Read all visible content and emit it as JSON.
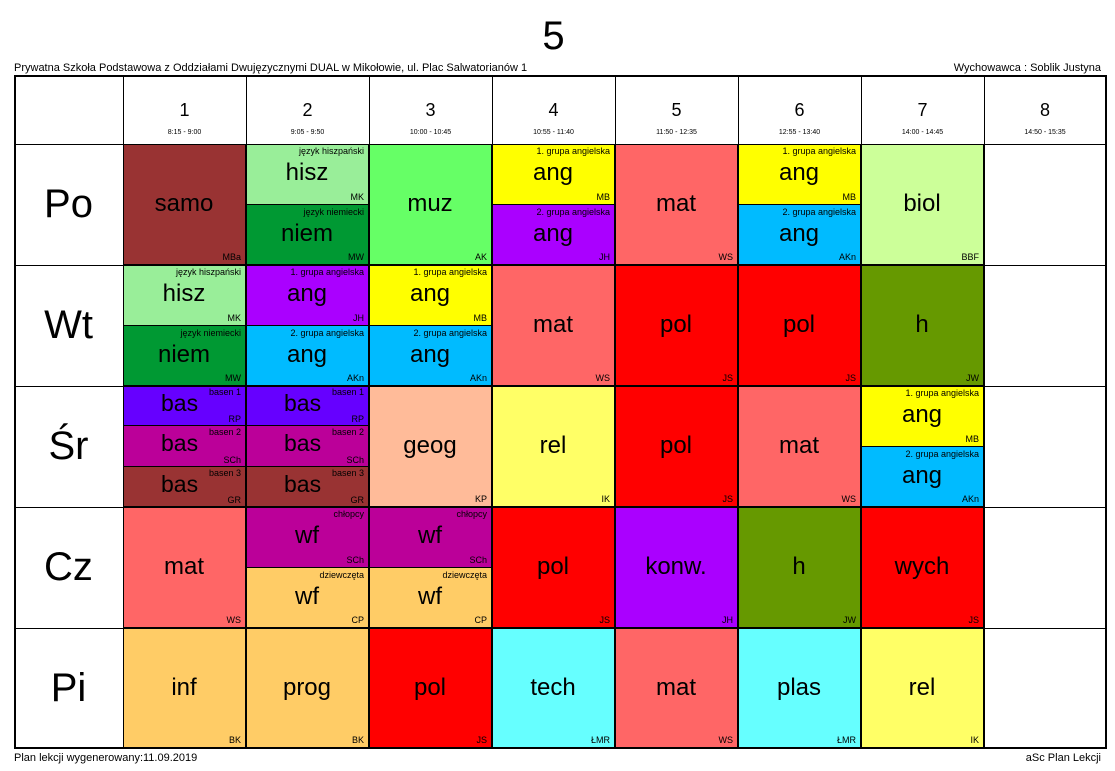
{
  "title": "5",
  "school": "Prywatna Szkoła Podstawowa z Oddziałami Dwujęzycznymi DUAL w Mikołowie, ul. Plac Salwatorianów 1",
  "teacher": "Wychowawca : Soblik Justyna",
  "footer_left": "Plan lekcji wygenerowany:11.09.2019",
  "footer_right": "aSc Plan Lekcji",
  "periods": [
    {
      "num": "1",
      "time": "8:15 - 9:00"
    },
    {
      "num": "2",
      "time": "9:05 - 9:50"
    },
    {
      "num": "3",
      "time": "10:00 - 10:45"
    },
    {
      "num": "4",
      "time": "10:55 - 11:40"
    },
    {
      "num": "5",
      "time": "11:50 - 12:35"
    },
    {
      "num": "6",
      "time": "12:55 - 13:40"
    },
    {
      "num": "7",
      "time": "14:00 - 14:45"
    },
    {
      "num": "8",
      "time": "14:50 - 15:35"
    }
  ],
  "days": [
    "Po",
    "Wt",
    "Śr",
    "Cz",
    "Pi"
  ],
  "lessons": [
    {
      "day": 0,
      "period": 1,
      "part": 0,
      "parts": 1,
      "subject": "samo",
      "group": "",
      "teacher": "MBa",
      "color": "#993333"
    },
    {
      "day": 0,
      "period": 2,
      "part": 0,
      "parts": 2,
      "subject": "hisz",
      "group": "język hiszpański",
      "teacher": "MK",
      "color": "#99ee99"
    },
    {
      "day": 0,
      "period": 2,
      "part": 1,
      "parts": 2,
      "subject": "niem",
      "group": "język niemiecki",
      "teacher": "MW",
      "color": "#009933"
    },
    {
      "day": 0,
      "period": 3,
      "part": 0,
      "parts": 1,
      "subject": "muz",
      "group": "",
      "teacher": "AK",
      "color": "#66ff66"
    },
    {
      "day": 0,
      "period": 4,
      "part": 0,
      "parts": 2,
      "subject": "ang",
      "group": "1. grupa angielska",
      "teacher": "MB",
      "color": "#ffff00"
    },
    {
      "day": 0,
      "period": 4,
      "part": 1,
      "parts": 2,
      "subject": "ang",
      "group": "2. grupa angielska",
      "teacher": "JH",
      "color": "#aa00ff"
    },
    {
      "day": 0,
      "period": 5,
      "part": 0,
      "parts": 1,
      "subject": "mat",
      "group": "",
      "teacher": "WS",
      "color": "#ff6666"
    },
    {
      "day": 0,
      "period": 6,
      "part": 0,
      "parts": 2,
      "subject": "ang",
      "group": "1. grupa angielska",
      "teacher": "MB",
      "color": "#ffff00"
    },
    {
      "day": 0,
      "period": 6,
      "part": 1,
      "parts": 2,
      "subject": "ang",
      "group": "2. grupa angielska",
      "teacher": "AKn",
      "color": "#00bbff"
    },
    {
      "day": 0,
      "period": 7,
      "part": 0,
      "parts": 1,
      "subject": "biol",
      "group": "",
      "teacher": "BBF",
      "color": "#ccff99"
    },
    {
      "day": 1,
      "period": 1,
      "part": 0,
      "parts": 2,
      "subject": "hisz",
      "group": "język hiszpański",
      "teacher": "MK",
      "color": "#99ee99"
    },
    {
      "day": 1,
      "period": 1,
      "part": 1,
      "parts": 2,
      "subject": "niem",
      "group": "język niemiecki",
      "teacher": "MW",
      "color": "#009933"
    },
    {
      "day": 1,
      "period": 2,
      "part": 0,
      "parts": 2,
      "subject": "ang",
      "group": "1. grupa angielska",
      "teacher": "JH",
      "color": "#aa00ff"
    },
    {
      "day": 1,
      "period": 2,
      "part": 1,
      "parts": 2,
      "subject": "ang",
      "group": "2. grupa angielska",
      "teacher": "AKn",
      "color": "#00bbff"
    },
    {
      "day": 1,
      "period": 3,
      "part": 0,
      "parts": 2,
      "subject": "ang",
      "group": "1. grupa angielska",
      "teacher": "MB",
      "color": "#ffff00"
    },
    {
      "day": 1,
      "period": 3,
      "part": 1,
      "parts": 2,
      "subject": "ang",
      "group": "2. grupa angielska",
      "teacher": "AKn",
      "color": "#00bbff"
    },
    {
      "day": 1,
      "period": 4,
      "part": 0,
      "parts": 1,
      "subject": "mat",
      "group": "",
      "teacher": "WS",
      "color": "#ff6666"
    },
    {
      "day": 1,
      "period": 5,
      "part": 0,
      "parts": 1,
      "subject": "pol",
      "group": "",
      "teacher": "JS",
      "color": "#ff0000"
    },
    {
      "day": 1,
      "period": 6,
      "part": 0,
      "parts": 1,
      "subject": "pol",
      "group": "",
      "teacher": "JS",
      "color": "#ff0000"
    },
    {
      "day": 1,
      "period": 7,
      "part": 0,
      "parts": 1,
      "subject": "h",
      "group": "",
      "teacher": "JW",
      "color": "#669900"
    },
    {
      "day": 2,
      "period": 1,
      "part": 0,
      "parts": 3,
      "subject": "bas",
      "group": "basen 1",
      "teacher": "RP",
      "color": "#6600ff"
    },
    {
      "day": 2,
      "period": 1,
      "part": 1,
      "parts": 3,
      "subject": "bas",
      "group": "basen 2",
      "teacher": "SCh",
      "color": "#bb0099"
    },
    {
      "day": 2,
      "period": 1,
      "part": 2,
      "parts": 3,
      "subject": "bas",
      "group": "basen 3",
      "teacher": "GR",
      "color": "#993333"
    },
    {
      "day": 2,
      "period": 2,
      "part": 0,
      "parts": 3,
      "subject": "bas",
      "group": "basen 1",
      "teacher": "RP",
      "color": "#6600ff"
    },
    {
      "day": 2,
      "period": 2,
      "part": 1,
      "parts": 3,
      "subject": "bas",
      "group": "basen 2",
      "teacher": "SCh",
      "color": "#bb0099"
    },
    {
      "day": 2,
      "period": 2,
      "part": 2,
      "parts": 3,
      "subject": "bas",
      "group": "basen 3",
      "teacher": "GR",
      "color": "#993333"
    },
    {
      "day": 2,
      "period": 3,
      "part": 0,
      "parts": 1,
      "subject": "geog",
      "group": "",
      "teacher": "KP",
      "color": "#ffbb99"
    },
    {
      "day": 2,
      "period": 4,
      "part": 0,
      "parts": 1,
      "subject": "rel",
      "group": "",
      "teacher": "IK",
      "color": "#ffff66"
    },
    {
      "day": 2,
      "period": 5,
      "part": 0,
      "parts": 1,
      "subject": "pol",
      "group": "",
      "teacher": "JS",
      "color": "#ff0000"
    },
    {
      "day": 2,
      "period": 6,
      "part": 0,
      "parts": 1,
      "subject": "mat",
      "group": "",
      "teacher": "WS",
      "color": "#ff6666"
    },
    {
      "day": 2,
      "period": 7,
      "part": 0,
      "parts": 2,
      "subject": "ang",
      "group": "1. grupa angielska",
      "teacher": "MB",
      "color": "#ffff00"
    },
    {
      "day": 2,
      "period": 7,
      "part": 1,
      "parts": 2,
      "subject": "ang",
      "group": "2. grupa angielska",
      "teacher": "AKn",
      "color": "#00bbff"
    },
    {
      "day": 3,
      "period": 1,
      "part": 0,
      "parts": 1,
      "subject": "mat",
      "group": "",
      "teacher": "WS",
      "color": "#ff6666"
    },
    {
      "day": 3,
      "period": 2,
      "part": 0,
      "parts": 2,
      "subject": "wf",
      "group": "chłopcy",
      "teacher": "SCh",
      "color": "#bb0099"
    },
    {
      "day": 3,
      "period": 2,
      "part": 1,
      "parts": 2,
      "subject": "wf",
      "group": "dziewczęta",
      "teacher": "CP",
      "color": "#ffcc66"
    },
    {
      "day": 3,
      "period": 3,
      "part": 0,
      "parts": 2,
      "subject": "wf",
      "group": "chłopcy",
      "teacher": "SCh",
      "color": "#bb0099"
    },
    {
      "day": 3,
      "period": 3,
      "part": 1,
      "parts": 2,
      "subject": "wf",
      "group": "dziewczęta",
      "teacher": "CP",
      "color": "#ffcc66"
    },
    {
      "day": 3,
      "period": 4,
      "part": 0,
      "parts": 1,
      "subject": "pol",
      "group": "",
      "teacher": "JS",
      "color": "#ff0000"
    },
    {
      "day": 3,
      "period": 5,
      "part": 0,
      "parts": 1,
      "subject": "konw.",
      "group": "",
      "teacher": "JH",
      "color": "#aa00ff"
    },
    {
      "day": 3,
      "period": 6,
      "part": 0,
      "parts": 1,
      "subject": "h",
      "group": "",
      "teacher": "JW",
      "color": "#669900"
    },
    {
      "day": 3,
      "period": 7,
      "part": 0,
      "parts": 1,
      "subject": "wych",
      "group": "",
      "teacher": "JS",
      "color": "#ff0000"
    },
    {
      "day": 4,
      "period": 1,
      "part": 0,
      "parts": 1,
      "subject": "inf",
      "group": "",
      "teacher": "BK",
      "color": "#ffcc66"
    },
    {
      "day": 4,
      "period": 2,
      "part": 0,
      "parts": 1,
      "subject": "prog",
      "group": "",
      "teacher": "BK",
      "color": "#ffcc66"
    },
    {
      "day": 4,
      "period": 3,
      "part": 0,
      "parts": 1,
      "subject": "pol",
      "group": "",
      "teacher": "JS",
      "color": "#ff0000"
    },
    {
      "day": 4,
      "period": 4,
      "part": 0,
      "parts": 1,
      "subject": "tech",
      "group": "",
      "teacher": "ŁMR",
      "color": "#66ffff"
    },
    {
      "day": 4,
      "period": 5,
      "part": 0,
      "parts": 1,
      "subject": "mat",
      "group": "",
      "teacher": "WS",
      "color": "#ff6666"
    },
    {
      "day": 4,
      "period": 6,
      "part": 0,
      "parts": 1,
      "subject": "plas",
      "group": "",
      "teacher": "ŁMR",
      "color": "#66ffff"
    },
    {
      "day": 4,
      "period": 7,
      "part": 0,
      "parts": 1,
      "subject": "rel",
      "group": "",
      "teacher": "IK",
      "color": "#ffff66"
    }
  ]
}
